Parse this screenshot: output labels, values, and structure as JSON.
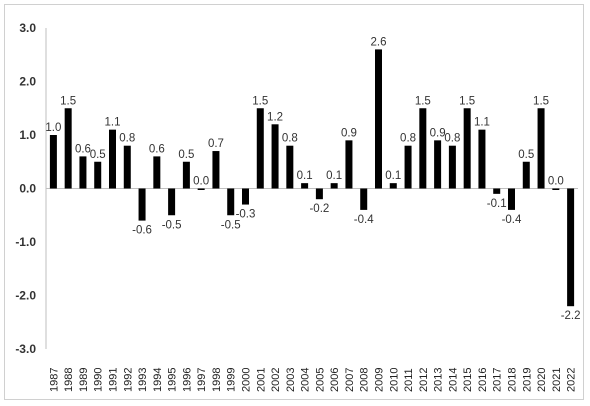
{
  "chart_data": {
    "type": "bar",
    "title": "",
    "xlabel": "",
    "ylabel": "",
    "ylim": [
      -3.0,
      3.0
    ],
    "yticks": [
      "3.0",
      "2.0",
      "1.0",
      "0.0",
      "-1.0",
      "-2.0",
      "-3.0"
    ],
    "grid": false,
    "legend": "none",
    "bar_color": "#000000",
    "categories": [
      "1987",
      "1988",
      "1989",
      "1990",
      "1991",
      "1992",
      "1993",
      "1994",
      "1995",
      "1996",
      "1997",
      "1998",
      "1999",
      "2000",
      "2001",
      "2002",
      "2003",
      "2004",
      "2005",
      "2006",
      "2007",
      "2008",
      "2009",
      "2010",
      "2011",
      "2012",
      "2013",
      "2014",
      "2015",
      "2016",
      "2017",
      "2018",
      "2019",
      "2020",
      "2021",
      "2022"
    ],
    "values": [
      1.0,
      1.5,
      0.6,
      0.5,
      1.1,
      0.8,
      -0.6,
      0.6,
      -0.5,
      0.5,
      0.0,
      0.7,
      -0.5,
      -0.3,
      1.5,
      1.2,
      0.8,
      0.1,
      -0.2,
      0.1,
      0.9,
      -0.4,
      2.6,
      0.1,
      0.8,
      1.5,
      0.9,
      0.8,
      1.5,
      1.1,
      -0.1,
      -0.4,
      0.5,
      1.5,
      0.0,
      -2.2
    ],
    "data_labels": [
      "1.0",
      "1.5",
      "0.6",
      "0.5",
      "1.1",
      "0.8",
      "-0.6",
      "0.6",
      "-0.5",
      "0.5",
      "0.0",
      "0.7",
      "-0.5",
      "-0.3",
      "1.5",
      "1.2",
      "0.8",
      "0.1",
      "-0.2",
      "0.1",
      "0.9",
      "-0.4",
      "2.6",
      "0.1",
      "0.8",
      "1.5",
      "0.9",
      "0.8",
      "1.5",
      "1.1",
      "-0.1",
      "-0.4",
      "0.5",
      "1.5",
      "0.0",
      "-2.2"
    ]
  }
}
